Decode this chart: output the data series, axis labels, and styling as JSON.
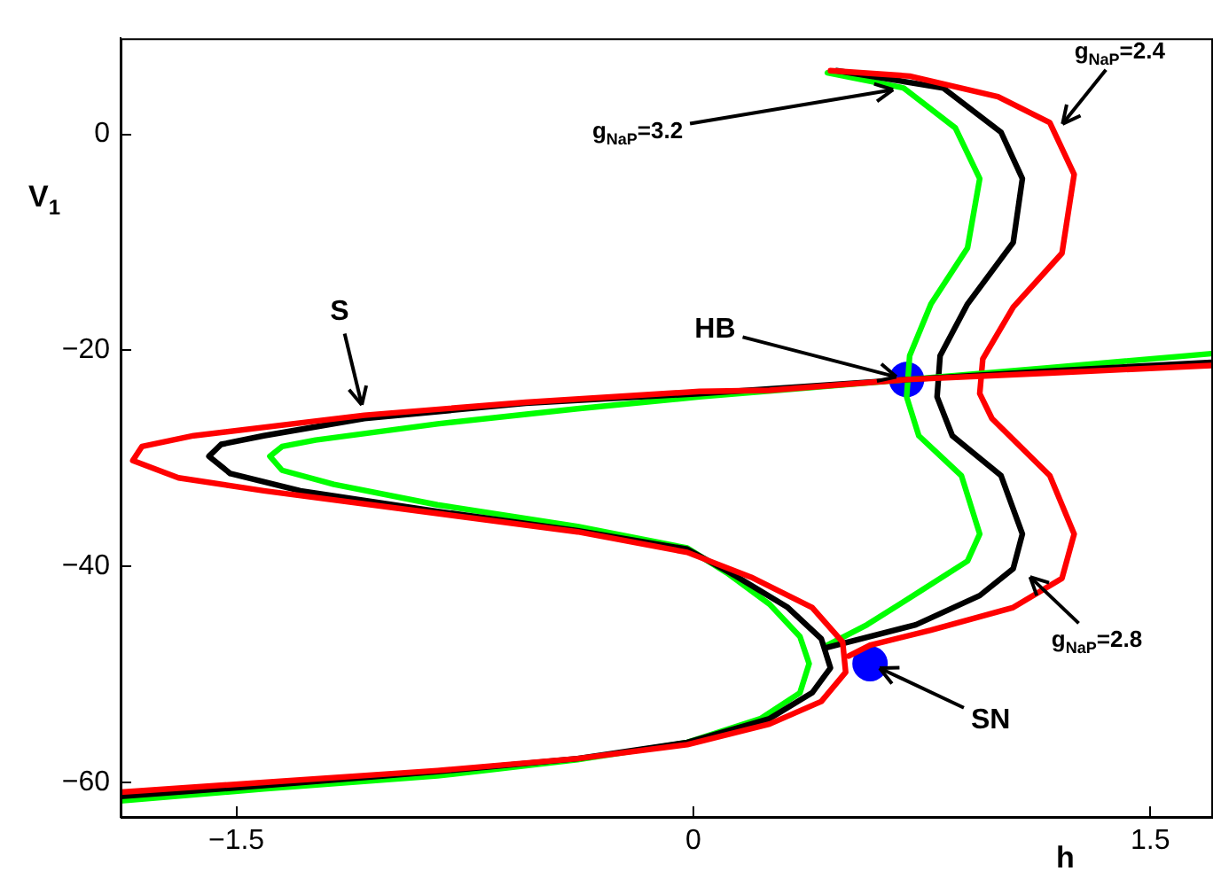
{
  "chart_data": {
    "type": "line",
    "xlabel": "h",
    "ylabel": "V$_{1}$",
    "xlim": [
      -1.88,
      1.7
    ],
    "ylim": [
      -63.2,
      8.9
    ],
    "xticks": [
      -1.5,
      0,
      1.5
    ],
    "yticks": [
      -60,
      -40,
      -20,
      0
    ],
    "grid": false,
    "legend": false,
    "marker": "none",
    "line_style": "solid",
    "series": [
      {
        "color": "#ff0000",
        "x": [
          -1.88,
          -1.41,
          -0.84,
          -0.38,
          -0.02,
          0.25,
          0.42,
          0.5,
          0.49,
          0.39,
          0.19,
          -0.02,
          -0.38,
          -0.84,
          -1.41,
          -1.69,
          -1.84,
          -1.81,
          -1.64,
          -1.08,
          -0.55,
          0.02,
          0.25,
          0.7,
          1.17,
          1.7
        ],
        "values": [
          -60.9,
          -60.0,
          -58.9,
          -57.8,
          -56.5,
          -54.6,
          -52.5,
          -49.8,
          -47.0,
          -43.8,
          -41.0,
          -38.7,
          -36.8,
          -35.1,
          -33.0,
          -31.8,
          -30.2,
          -28.9,
          -27.9,
          -26.0,
          -24.8,
          -23.8,
          -23.7,
          -22.7,
          -22.1,
          -21.4
        ]
      },
      {
        "color": "#000000",
        "x": [
          -1.88,
          -1.41,
          -0.84,
          -0.38,
          -0.02,
          0.25,
          0.39,
          0.45,
          0.42,
          0.31,
          0.14,
          -0.02,
          -0.38,
          -0.84,
          -1.29,
          -1.52,
          -1.59,
          -1.55,
          -1.41,
          -1.08,
          -0.55,
          0.02,
          0.7,
          1.17,
          1.7
        ],
        "values": [
          -61.3,
          -60.3,
          -59.0,
          -57.8,
          -56.3,
          -54.1,
          -51.7,
          -49.4,
          -46.7,
          -43.8,
          -40.9,
          -38.4,
          -36.7,
          -34.9,
          -33.0,
          -31.4,
          -29.8,
          -28.7,
          -27.9,
          -26.3,
          -24.9,
          -24.0,
          -22.7,
          -21.9,
          -21.1
        ]
      },
      {
        "color": "#00ff00",
        "x": [
          -1.88,
          -1.41,
          -0.84,
          -0.38,
          -0.02,
          0.22,
          0.35,
          0.38,
          0.35,
          0.25,
          0.11,
          -0.02,
          -0.38,
          -0.84,
          -1.18,
          -1.35,
          -1.39,
          -1.35,
          -1.24,
          -0.84,
          -0.38,
          0.02,
          0.7,
          1.17,
          1.7
        ],
        "values": [
          -61.7,
          -60.6,
          -59.4,
          -57.9,
          -56.3,
          -54.1,
          -51.7,
          -49.0,
          -46.5,
          -43.5,
          -40.6,
          -38.3,
          -36.3,
          -34.3,
          -32.4,
          -31.1,
          -29.8,
          -28.9,
          -28.3,
          -26.8,
          -25.4,
          -24.3,
          -22.7,
          -21.6,
          -20.3
        ]
      },
      {
        "color": "#ff0000",
        "x": [
          0.45,
          0.71,
          1.0,
          1.17,
          1.25,
          1.21,
          1.05,
          0.95,
          0.94,
          0.98,
          1.17,
          1.25,
          1.21,
          1.05,
          0.78,
          0.58,
          0.51
        ],
        "values": [
          5.9,
          5.4,
          3.5,
          1.1,
          -3.7,
          -11.0,
          -16.0,
          -20.8,
          -24.0,
          -26.3,
          -31.6,
          -37.0,
          -41.1,
          -43.8,
          -45.9,
          -47.3,
          -48.3
        ]
      },
      {
        "color": "#000000",
        "x": [
          0.47,
          0.82,
          1.01,
          1.08,
          1.05,
          0.9,
          0.81,
          0.8,
          0.85,
          1.01,
          1.08,
          1.05,
          0.94,
          0.73,
          0.44
        ],
        "values": [
          5.9,
          4.3,
          0.2,
          -4.1,
          -10.0,
          -15.7,
          -20.5,
          -24.3,
          -27.9,
          -31.6,
          -37.0,
          -40.2,
          -42.7,
          -45.4,
          -47.5
        ]
      },
      {
        "color": "#00ff00",
        "x": [
          0.44,
          0.69,
          0.86,
          0.94,
          0.9,
          0.78,
          0.71,
          0.7,
          0.74,
          0.88,
          0.94,
          0.9,
          0.75,
          0.57,
          0.44
        ],
        "values": [
          5.7,
          4.3,
          0.6,
          -4.1,
          -10.5,
          -15.7,
          -20.5,
          -24.3,
          -27.9,
          -31.6,
          -37.0,
          -39.5,
          -42.2,
          -45.4,
          -47.3
        ]
      },
      {
        "type": "scatter",
        "color": "#0000ff",
        "marker": "circle",
        "x": [
          0.7,
          0.58
        ],
        "values": [
          -22.7,
          -49.0
        ]
      }
    ],
    "annotations": [
      {
        "text": "S",
        "x": -1.08,
        "y": -26.0
      },
      {
        "text": "HB",
        "x": 0.7,
        "y": -22.7
      },
      {
        "text": "SN",
        "x": 0.58,
        "y": -49.0
      },
      {
        "text": "g$_{NaP}$=3.2",
        "x": 0.69,
        "y": 4.3
      },
      {
        "text": "g$_{NaP}$=2.4",
        "x": 1.19,
        "y": 0.2
      },
      {
        "text": "g$_{NaP}$=2.8",
        "x": 1.08,
        "y": -40.3
      }
    ]
  }
}
